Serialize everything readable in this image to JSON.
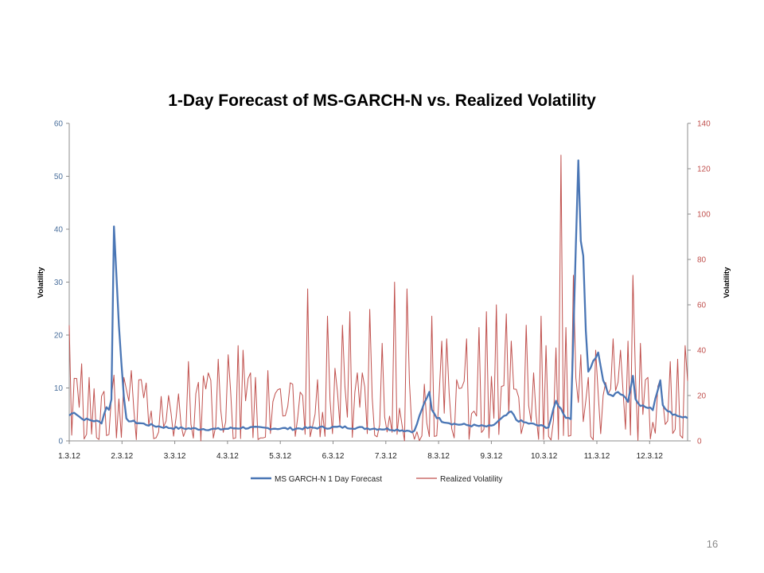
{
  "slide": {
    "page_number": "16"
  },
  "chart_data": {
    "type": "line",
    "title": "1-Day Forecast of MS-GARCH-N vs. Realized Volatility",
    "ylabel_left": "Volatility",
    "ylabel_right": "Volatility",
    "ylim_left": [
      0,
      60
    ],
    "yticks_left": [
      0,
      10,
      20,
      30,
      40,
      50,
      60
    ],
    "ylim_right": [
      0,
      140
    ],
    "yticks_right": [
      0,
      20,
      40,
      60,
      80,
      100,
      120,
      140
    ],
    "x_ticks": [
      "1.3.12",
      "2.3.12",
      "3.3.12",
      "4.3.12",
      "5.3.12",
      "6.3.12",
      "7.3.12",
      "8.3.12",
      "9.3.12",
      "10.3.12",
      "11.3.12",
      "12.3.12"
    ],
    "x_count": 250,
    "legend_position": "bottom",
    "grid": false,
    "colors": {
      "forecast": "#4a76b5",
      "realized": "#c0504d",
      "axis": "#8c8c8c"
    },
    "forecast_keypoints": [
      [
        0,
        4.8
      ],
      [
        2,
        5.5
      ],
      [
        5,
        4.2
      ],
      [
        10,
        3.8
      ],
      [
        13,
        3.5
      ],
      [
        15,
        6.5
      ],
      [
        16,
        5.8
      ],
      [
        17,
        8
      ],
      [
        18,
        40.5
      ],
      [
        20,
        22
      ],
      [
        22,
        8
      ],
      [
        23,
        4
      ],
      [
        26,
        3.6
      ],
      [
        30,
        3.2
      ],
      [
        35,
        2.8
      ],
      [
        40,
        2.5
      ],
      [
        50,
        2.3
      ],
      [
        60,
        2.2
      ],
      [
        70,
        2.5
      ],
      [
        80,
        2.4
      ],
      [
        90,
        2.3
      ],
      [
        100,
        2.5
      ],
      [
        110,
        2.6
      ],
      [
        120,
        2.4
      ],
      [
        130,
        2.2
      ],
      [
        135,
        2.0
      ],
      [
        139,
        1.8
      ],
      [
        142,
        6
      ],
      [
        144,
        8
      ],
      [
        145,
        9.2
      ],
      [
        146,
        6
      ],
      [
        148,
        4.5
      ],
      [
        150,
        3.8
      ],
      [
        155,
        3.2
      ],
      [
        160,
        3.0
      ],
      [
        165,
        2.8
      ],
      [
        170,
        2.7
      ],
      [
        175,
        4.5
      ],
      [
        178,
        5.5
      ],
      [
        180,
        4
      ],
      [
        183,
        3.5
      ],
      [
        186,
        3.2
      ],
      [
        190,
        2.8
      ],
      [
        193,
        2.6
      ],
      [
        196,
        7.5
      ],
      [
        198,
        6
      ],
      [
        200,
        4.5
      ],
      [
        202,
        4.2
      ],
      [
        205,
        53
      ],
      [
        206,
        38
      ],
      [
        207,
        35
      ],
      [
        208,
        21
      ],
      [
        209,
        13
      ],
      [
        211,
        15
      ],
      [
        213,
        16.5
      ],
      [
        214,
        14
      ],
      [
        215,
        11.5
      ],
      [
        217,
        9
      ],
      [
        219,
        8.5
      ],
      [
        221,
        9.2
      ],
      [
        223,
        8.8
      ],
      [
        225,
        7.5
      ],
      [
        227,
        12.3
      ],
      [
        228,
        8
      ],
      [
        230,
        6.8
      ],
      [
        233,
        6.2
      ],
      [
        235,
        6.0
      ],
      [
        236,
        8
      ],
      [
        238,
        11.5
      ],
      [
        239,
        7
      ],
      [
        241,
        5.5
      ],
      [
        245,
        4.8
      ],
      [
        250,
        4.2
      ]
    ],
    "realized_seed": 7,
    "realized_mean": 17,
    "realized_spikes": [
      [
        0,
        51
      ],
      [
        5,
        34
      ],
      [
        9,
        3
      ],
      [
        10,
        23
      ],
      [
        18,
        29
      ],
      [
        22,
        28
      ],
      [
        25,
        31
      ],
      [
        30,
        19
      ],
      [
        40,
        20
      ],
      [
        48,
        35
      ],
      [
        56,
        30
      ],
      [
        60,
        36
      ],
      [
        64,
        38
      ],
      [
        68,
        42
      ],
      [
        70,
        40
      ],
      [
        73,
        30
      ],
      [
        75,
        28
      ],
      [
        80,
        31
      ],
      [
        85,
        23
      ],
      [
        90,
        25
      ],
      [
        94,
        20
      ],
      [
        96,
        67
      ],
      [
        100,
        27
      ],
      [
        104,
        55
      ],
      [
        107,
        32
      ],
      [
        110,
        51
      ],
      [
        113,
        57
      ],
      [
        116,
        30
      ],
      [
        118,
        30
      ],
      [
        121,
        58
      ],
      [
        126,
        43
      ],
      [
        131,
        70
      ],
      [
        136,
        67
      ],
      [
        143,
        25
      ],
      [
        146,
        55
      ],
      [
        150,
        44
      ],
      [
        152,
        45
      ],
      [
        156,
        27
      ],
      [
        160,
        45
      ],
      [
        165,
        50
      ],
      [
        168,
        57
      ],
      [
        172,
        60
      ],
      [
        174,
        24
      ],
      [
        176,
        56
      ],
      [
        178,
        44
      ],
      [
        184,
        51
      ],
      [
        187,
        30
      ],
      [
        190,
        55
      ],
      [
        192,
        42
      ],
      [
        196,
        41
      ],
      [
        198,
        126
      ],
      [
        200,
        50
      ],
      [
        203,
        73
      ],
      [
        206,
        38
      ],
      [
        209,
        28
      ],
      [
        212,
        40
      ],
      [
        215,
        20
      ],
      [
        219,
        45
      ],
      [
        222,
        40
      ],
      [
        225,
        44
      ],
      [
        227,
        73
      ],
      [
        230,
        43
      ],
      [
        233,
        28
      ],
      [
        238,
        27
      ],
      [
        242,
        35
      ],
      [
        245,
        36
      ],
      [
        248,
        42
      ]
    ]
  },
  "legend": {
    "forecast_label": "MS GARCH-N 1 Day Forecast",
    "realized_label": "Realized Volatility"
  }
}
